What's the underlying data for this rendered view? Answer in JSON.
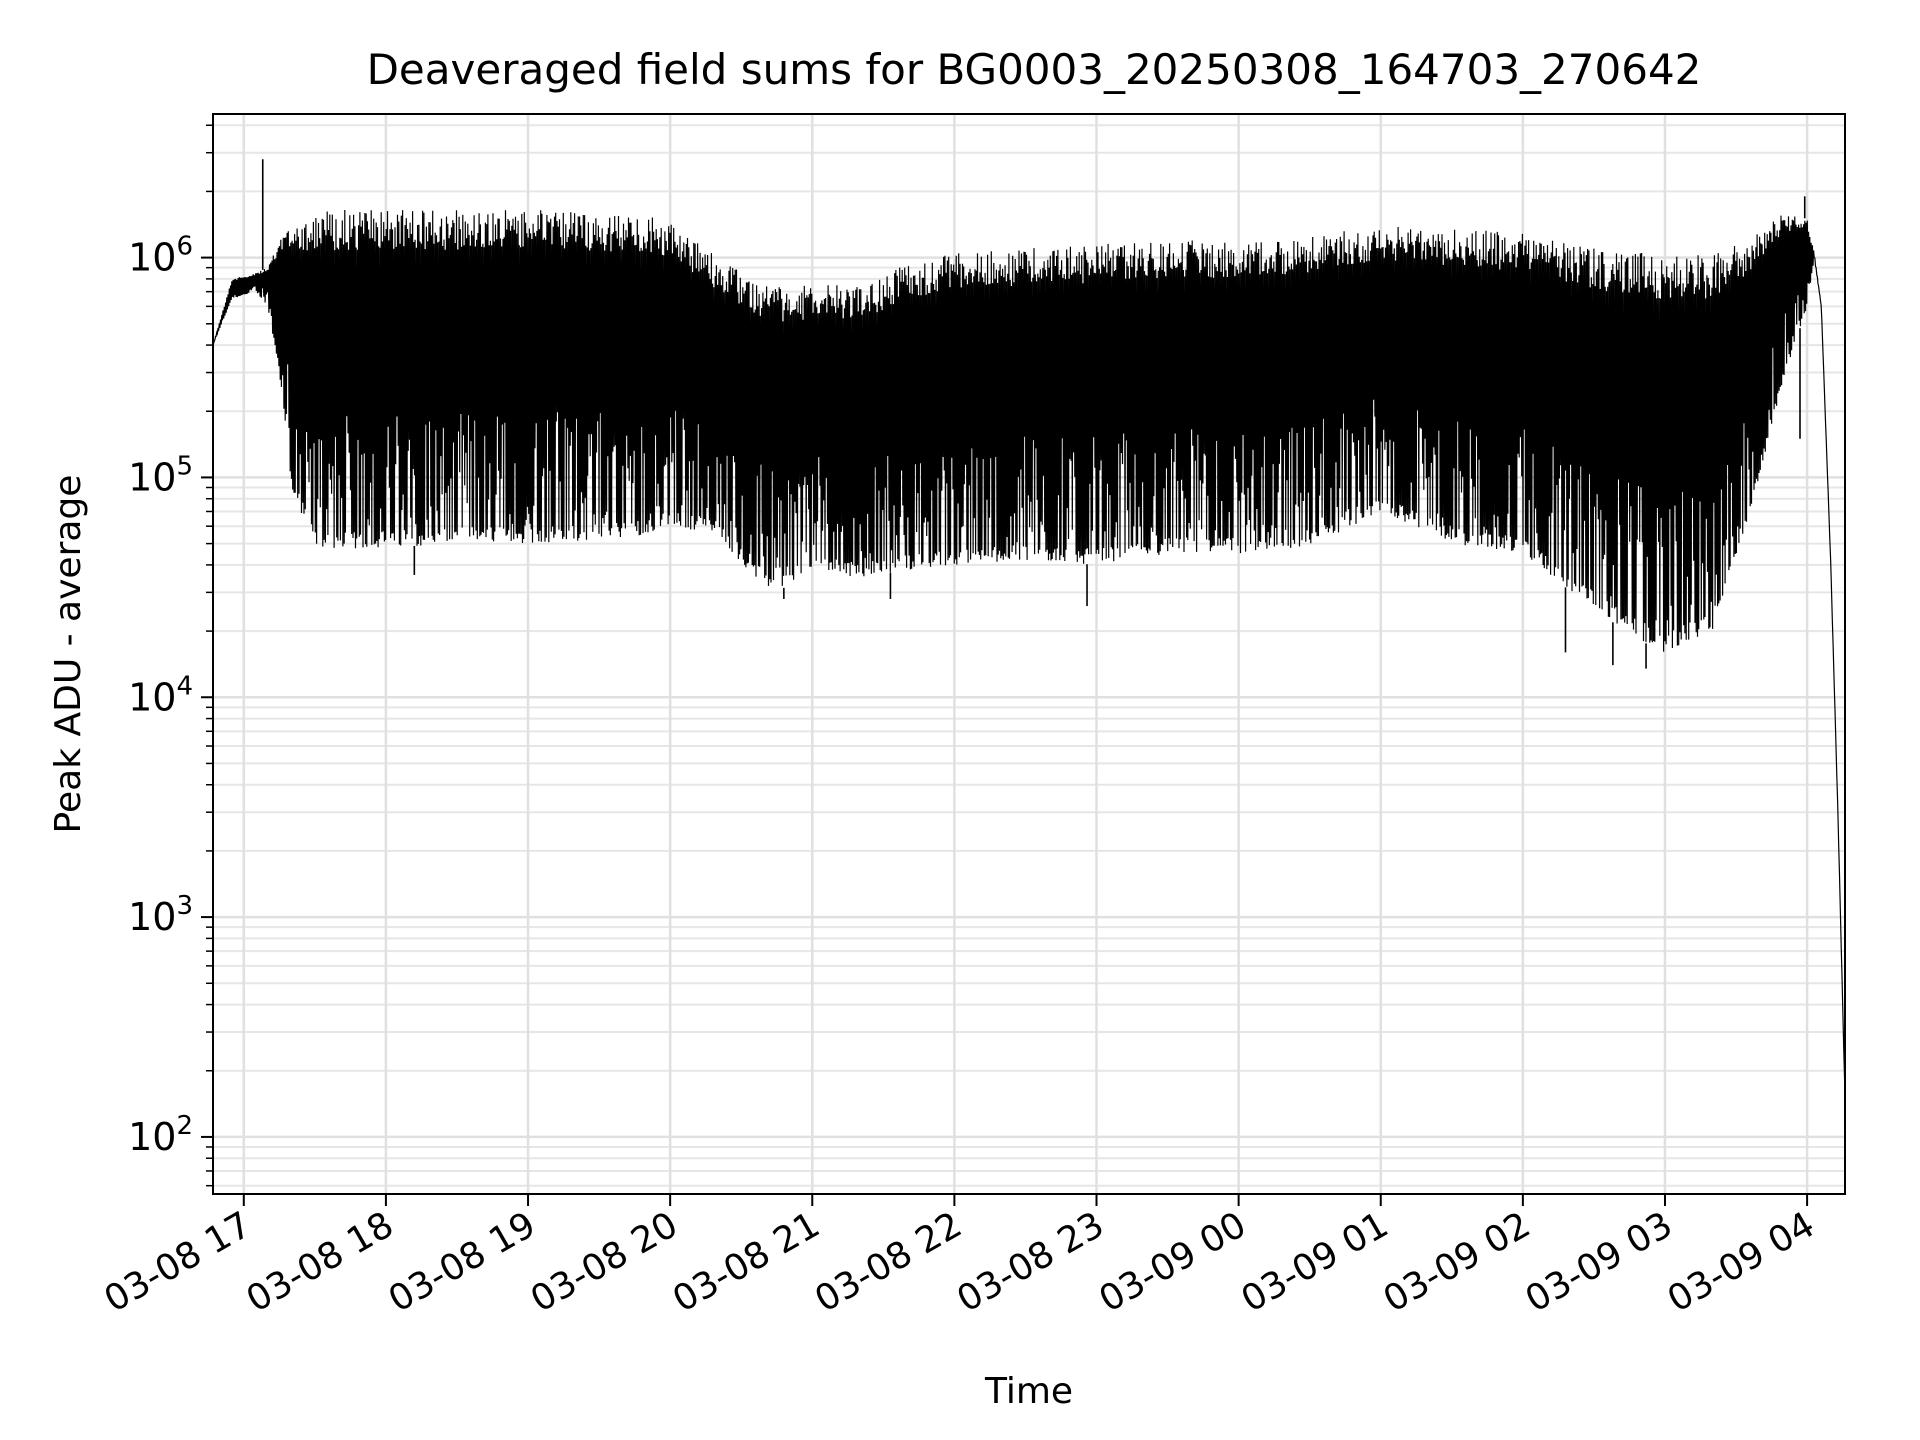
{
  "chart_data": {
    "type": "line",
    "title": "Deaveraged field sums for BG0003_20250308_164703_270642",
    "xlabel": "Time",
    "ylabel": "Peak ADU - average",
    "yscale": "log",
    "grid": true,
    "legend": "none",
    "line_color": "#000000",
    "xlim": [
      "2025-03-08T16:47",
      "2025-03-09T04:16"
    ],
    "ylim": [
      55,
      4500000
    ],
    "x_ticks": [
      {
        "t": "2025-03-08T17:00",
        "label": "03-08 17"
      },
      {
        "t": "2025-03-08T18:00",
        "label": "03-08 18"
      },
      {
        "t": "2025-03-08T19:00",
        "label": "03-08 19"
      },
      {
        "t": "2025-03-08T20:00",
        "label": "03-08 20"
      },
      {
        "t": "2025-03-08T21:00",
        "label": "03-08 21"
      },
      {
        "t": "2025-03-08T22:00",
        "label": "03-08 22"
      },
      {
        "t": "2025-03-08T23:00",
        "label": "03-08 23"
      },
      {
        "t": "2025-03-09T00:00",
        "label": "03-09 00"
      },
      {
        "t": "2025-03-09T01:00",
        "label": "03-09 01"
      },
      {
        "t": "2025-03-09T02:00",
        "label": "03-09 02"
      },
      {
        "t": "2025-03-09T03:00",
        "label": "03-09 03"
      },
      {
        "t": "2025-03-09T04:00",
        "label": "03-09 04"
      }
    ],
    "y_ticks": [
      {
        "value": 100,
        "base": "10",
        "exp": "2"
      },
      {
        "value": 1000,
        "base": "10",
        "exp": "3"
      },
      {
        "value": 10000,
        "base": "10",
        "exp": "4"
      },
      {
        "value": 100000,
        "base": "10",
        "exp": "5"
      },
      {
        "value": 1000000,
        "base": "10",
        "exp": "6"
      }
    ],
    "series": [
      {
        "envelope": {
          "x": [
            "2025-03-08T16:47",
            "2025-03-08T16:55",
            "2025-03-08T17:05",
            "2025-03-08T17:10",
            "2025-03-08T17:15",
            "2025-03-08T17:20",
            "2025-03-08T17:30",
            "2025-03-08T17:45",
            "2025-03-08T18:00",
            "2025-03-08T18:30",
            "2025-03-08T19:00",
            "2025-03-08T19:30",
            "2025-03-08T19:50",
            "2025-03-08T20:00",
            "2025-03-08T20:20",
            "2025-03-08T20:35",
            "2025-03-08T20:45",
            "2025-03-08T21:00",
            "2025-03-08T21:20",
            "2025-03-08T21:40",
            "2025-03-08T22:00",
            "2025-03-08T22:30",
            "2025-03-08T23:00",
            "2025-03-08T23:30",
            "2025-03-09T00:00",
            "2025-03-09T00:30",
            "2025-03-09T01:00",
            "2025-03-09T01:30",
            "2025-03-09T02:00",
            "2025-03-09T02:30",
            "2025-03-09T02:50",
            "2025-03-09T03:00",
            "2025-03-09T03:20",
            "2025-03-09T03:35",
            "2025-03-09T03:50",
            "2025-03-09T04:00",
            "2025-03-09T04:03",
            "2025-03-09T04:06",
            "2025-03-09T04:10",
            "2025-03-09T04:13",
            "2025-03-09T04:16"
          ],
          "upper": [
            400000,
            800000,
            850000,
            900000,
            1200000,
            1500000,
            1650000,
            1650000,
            1650000,
            1650000,
            1650000,
            1600000,
            1550000,
            1450000,
            1000000,
            800000,
            750000,
            750000,
            750000,
            950000,
            1050000,
            1100000,
            1150000,
            1200000,
            1200000,
            1250000,
            1400000,
            1350000,
            1300000,
            1100000,
            1100000,
            1050000,
            1050000,
            1200000,
            1600000,
            1500000,
            1050000,
            600000,
            40000,
            3000,
            150
          ],
          "lower": [
            400000,
            650000,
            700000,
            600000,
            300000,
            90000,
            48000,
            47000,
            48000,
            50000,
            50000,
            52000,
            55000,
            60000,
            55000,
            35000,
            30000,
            38000,
            35000,
            38000,
            40000,
            42000,
            40000,
            45000,
            45000,
            48000,
            70000,
            50000,
            45000,
            25000,
            18000,
            16000,
            20000,
            60000,
            280000,
            600000,
            1000000,
            600000,
            40000,
            3000,
            150
          ]
        },
        "spikes": [
          {
            "x": "2025-03-08T17:08",
            "y": 2800000
          },
          {
            "x": "2025-03-09T03:59",
            "y": 1900000
          },
          {
            "x": "2025-03-09T03:57",
            "y": 150000
          },
          {
            "x": "2025-03-08T18:12",
            "y": 36000
          },
          {
            "x": "2025-03-08T20:48",
            "y": 28000
          },
          {
            "x": "2025-03-08T21:33",
            "y": 28000
          },
          {
            "x": "2025-03-08T22:56",
            "y": 26000
          },
          {
            "x": "2025-03-09T02:18",
            "y": 16000
          },
          {
            "x": "2025-03-09T02:38",
            "y": 14000
          },
          {
            "x": "2025-03-09T02:52",
            "y": 13500
          }
        ]
      }
    ]
  }
}
